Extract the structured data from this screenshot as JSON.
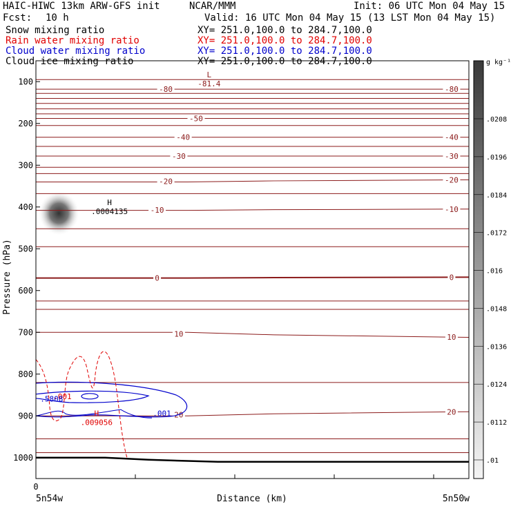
{
  "header": {
    "model": "HAIC-HIWC 13km ARW-GFS init",
    "center": "NCAR/MMM",
    "init": "Init: 06 UTC Mon 04 May 15",
    "fcst_label": "Fcst:",
    "fcst_value": "10 h",
    "valid": "Valid: 16 UTC Mon 04 May 15 (13 LST Mon 04 May 15)"
  },
  "fields": [
    {
      "name": "Snow mixing ratio",
      "xy": "XY= 251.0,100.0 to 284.7,100.0",
      "color": "#000000"
    },
    {
      "name": "Rain water mixing ratio",
      "xy": "XY= 251.0,100.0 to 284.7,100.0",
      "color": "#e00000"
    },
    {
      "name": "Cloud water mixing ratio",
      "xy": "XY= 251.0,100.0 to 284.7,100.0",
      "color": "#0000cc"
    },
    {
      "name": "Cloud ice mixing ratio",
      "xy": "XY= 251.0,100.0 to 284.7,100.0",
      "color": "#000000"
    }
  ],
  "chart_data": {
    "type": "contour",
    "ylabel": "Pressure (hPa)",
    "xlabel": "Distance (km)",
    "x_start_label": "5n54w",
    "x_end_label": "5n50w",
    "x_tick_label": "0",
    "y_ticks": [
      100,
      200,
      300,
      400,
      500,
      600,
      700,
      800,
      900,
      1000
    ],
    "ylim": [
      1050,
      50
    ],
    "colorbar": {
      "unit": "g kg⁻¹",
      "labels": [
        ".0208",
        ".0196",
        ".0184",
        ".0172",
        ".016",
        ".0148",
        ".0136",
        ".0124",
        ".0112",
        ".01"
      ]
    },
    "temperature_contours": [
      {
        "level": -80,
        "p_left": 118,
        "p_right": 118,
        "labels": [
          {
            "x": 0.3,
            "text": "-80"
          },
          {
            "x": 0.96,
            "text": "-80"
          }
        ]
      },
      {
        "level": -70,
        "p_left": 140,
        "p_right": 140,
        "labels": []
      },
      {
        "level": -60,
        "p_left": 165,
        "p_right": 165,
        "labels": []
      },
      {
        "level": -50,
        "p_left": 188,
        "p_right": 188,
        "labels": [
          {
            "x": 0.37,
            "text": "-50"
          }
        ]
      },
      {
        "level": -40,
        "p_left": 233,
        "p_right": 233,
        "labels": [
          {
            "x": 0.34,
            "text": "-40"
          },
          {
            "x": 0.96,
            "text": "-40"
          }
        ]
      },
      {
        "level": -30,
        "p_left": 278,
        "p_right": 278,
        "labels": [
          {
            "x": 0.33,
            "text": "-30"
          },
          {
            "x": 0.96,
            "text": "-30"
          }
        ]
      },
      {
        "level": -20,
        "p_left": 340,
        "p_right": 335,
        "labels": [
          {
            "x": 0.3,
            "text": "-20"
          },
          {
            "x": 0.96,
            "text": "-20"
          }
        ]
      },
      {
        "level": -10,
        "p_left": 408,
        "p_right": 405,
        "labels": [
          {
            "x": 0.28,
            "text": "-10"
          },
          {
            "x": 0.96,
            "text": "-10"
          }
        ]
      },
      {
        "level": 0,
        "p_left": 570,
        "p_right": 568,
        "labels": [
          {
            "x": 0.28,
            "text": "0"
          },
          {
            "x": 0.96,
            "text": "0"
          }
        ]
      },
      {
        "level": 10,
        "p_left": 700,
        "p_right": 712,
        "labels": [
          {
            "x": 0.33,
            "text": "10"
          },
          {
            "x": 0.96,
            "text": "10"
          }
        ]
      },
      {
        "level": 20,
        "p_left": 900,
        "p_right": 890,
        "labels": [
          {
            "x": 0.33,
            "text": "20"
          },
          {
            "x": 0.96,
            "text": "20"
          }
        ]
      }
    ],
    "extra_isotherm_pressures": [
      95,
      128,
      152,
      177,
      205,
      255,
      305,
      320,
      368,
      452,
      495,
      625,
      645,
      820,
      955,
      988
    ],
    "extrema": [
      {
        "kind": "L",
        "label": "L",
        "value": "-81.4",
        "x": 0.4,
        "p": 95,
        "color": "#8b1a1a"
      },
      {
        "kind": "H",
        "label": "H",
        "value": ".0004135",
        "x": 0.17,
        "p": 400,
        "color": "#000000"
      },
      {
        "kind": "H",
        "label": "H",
        "value": ".009056",
        "x": 0.14,
        "p": 905,
        "color": "#e00000"
      }
    ],
    "contour_labels": [
      {
        "text": ".001",
        "x": 0.04,
        "p": 860,
        "color": "#e00000"
      },
      {
        "text": ".5808",
        "x": 0.01,
        "p": 866,
        "color": "#0000cc"
      },
      {
        "text": ".001",
        "x": 0.27,
        "p": 900,
        "color": "#0000cc"
      }
    ],
    "snow_max": {
      "x": 0.05,
      "p": 415
    },
    "surface": [
      {
        "x": 0.0,
        "p": 1000
      },
      {
        "x": 0.16,
        "p": 1000
      },
      {
        "x": 0.26,
        "p": 1005
      },
      {
        "x": 0.42,
        "p": 1010
      },
      {
        "x": 1.0,
        "p": 1010
      }
    ]
  }
}
